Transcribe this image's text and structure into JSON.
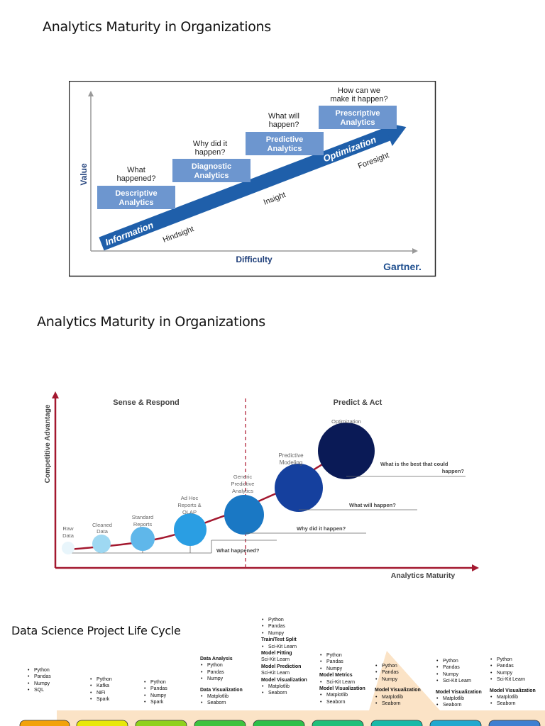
{
  "titles": {
    "first": "Analytics Maturity in Organizations",
    "second": "Analytics Maturity in Organizations",
    "third": "Data Science Project Life Cycle"
  },
  "gartner": {
    "y_axis": "Value",
    "x_axis": "Difficulty",
    "brand": "Gartner.",
    "arrow_labels": [
      "Information",
      "Optimization"
    ],
    "phases": [
      "Hindsight",
      "Insight",
      "Foresight"
    ],
    "stages": [
      {
        "box": [
          "Descriptive",
          "Analytics"
        ],
        "question": [
          "What",
          "happened?"
        ]
      },
      {
        "box": [
          "Diagnostic",
          "Analytics"
        ],
        "question": [
          "Why did it",
          "happen?"
        ]
      },
      {
        "box": [
          "Predictive",
          "Analytics"
        ],
        "question": [
          "What will",
          "happen?"
        ]
      },
      {
        "box": [
          "Prescriptive",
          "Analytics"
        ],
        "question": [
          "How can we",
          "make it happen?"
        ]
      }
    ],
    "colors": {
      "box": "#6d96cf",
      "arrow": "#1f5faa",
      "text": "#1f3f7a",
      "brand": "#1f4f8f"
    }
  },
  "maturity": {
    "y_axis": "Competitive Advantage",
    "x_axis": "Analytics Maturity",
    "left_region": "Sense & Respond",
    "right_region": "Predict & Act",
    "stages": [
      {
        "label": [
          "Raw",
          "Data"
        ],
        "color": "#e8f5fb"
      },
      {
        "label": [
          "Cleaned",
          "Data"
        ],
        "color": "#9ed8f2"
      },
      {
        "label": [
          "Standard",
          "Reports"
        ],
        "color": "#5fb7ea"
      },
      {
        "label": [
          "Ad Hoc",
          "Reports &",
          "OLAP"
        ],
        "color": "#2a9ee3"
      },
      {
        "label": [
          "Generic",
          "Predictive",
          "Analytics"
        ],
        "color": "#1a78c4"
      },
      {
        "label": [
          "Predictive",
          "Modeling"
        ],
        "color": "#15409e"
      },
      {
        "label": [
          "Optimization"
        ],
        "color": "#0a1a56"
      }
    ],
    "questions": [
      "What happened?",
      "Why did it happen?",
      "What will happen?",
      [
        "What is the best that could",
        "happen?"
      ]
    ],
    "colors": {
      "axis": "#a3182f",
      "curve": "#a3182f",
      "divider": "#b0223a"
    }
  },
  "lifecycle": {
    "columns": [
      {
        "groups": [
          {
            "heading": "",
            "items": [
              "Python",
              "Pandas",
              "Numpy",
              "SQL"
            ]
          }
        ]
      },
      {
        "groups": [
          {
            "heading": "",
            "items": [
              "Python",
              "Kafka",
              "NiFi",
              "Spark"
            ]
          }
        ]
      },
      {
        "groups": [
          {
            "heading": "",
            "items": [
              "Python",
              "Pandas",
              "Numpy",
              "Spark"
            ]
          }
        ]
      },
      {
        "groups": [
          {
            "heading": "Data Analysis",
            "items": [
              "Python",
              "Pandas",
              "Numpy"
            ]
          },
          {
            "heading": "Data Visualization",
            "items": [
              "Matplotlib",
              "Seaborn"
            ]
          }
        ]
      },
      {
        "groups": [
          {
            "heading": "",
            "items": [
              "Python",
              "Pandas",
              "Numpy"
            ]
          },
          {
            "heading": "Train/Test Split",
            "items": [
              "Sci-Kit Learn"
            ]
          },
          {
            "heading": "Model Fitting",
            "items": [],
            "plain": "Sci-Kit Learn"
          },
          {
            "heading": "Model Prediction",
            "items": [],
            "plain": "Sci-Kit Learn"
          },
          {
            "heading": "Model Visualization",
            "items": [
              "Matplotlib",
              "Seaborn"
            ]
          }
        ]
      },
      {
        "groups": [
          {
            "heading": "",
            "items": [
              "Python",
              "Pandas",
              "Numpy"
            ]
          },
          {
            "heading": "Model Metrics",
            "items": [
              "Sci-Kit Learn"
            ]
          },
          {
            "heading": "Model Visualization",
            "items": [
              "Matplotlib",
              "Seaborn"
            ]
          }
        ]
      },
      {
        "groups": [
          {
            "heading": "",
            "items": [
              "Python",
              "Pandas",
              "Numpy"
            ]
          },
          {
            "heading": "Model Visualization",
            "items": [
              "Matplotlib",
              "Seaborn"
            ]
          }
        ]
      },
      {
        "groups": [
          {
            "heading": "",
            "items": [
              "Python",
              "Pandas",
              "Numpy",
              "Sci-Kit Learn"
            ]
          },
          {
            "heading": "Model Visualization",
            "items": [
              "Matplotlib",
              "Seaborn"
            ]
          }
        ]
      },
      {
        "groups": [
          {
            "heading": "",
            "items": [
              "Python",
              "Pandas",
              "Numpy",
              "Sci-Kit Learn"
            ]
          },
          {
            "heading": "Model Visualization",
            "items": [
              "Matplotlib",
              "Seaborn"
            ]
          }
        ]
      }
    ],
    "stage_colors": [
      "#f2a20a",
      "#e8e80a",
      "#8fd11e",
      "#3fc23f",
      "#2fbf4a",
      "#20bf7a",
      "#18b9a8",
      "#22a8cf",
      "#3f7fd1"
    ]
  }
}
